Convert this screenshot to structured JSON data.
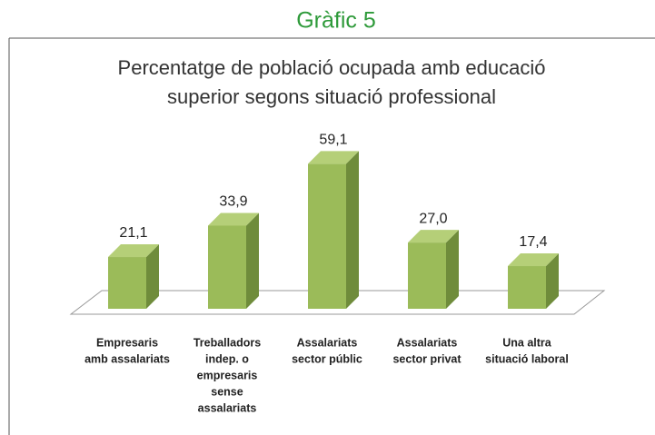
{
  "header": {
    "title": "Gràfic 5"
  },
  "chart_data": {
    "type": "bar",
    "title": [
      "Percentatge de població  ocupada amb educació",
      "superior  segons situació professional"
    ],
    "categories": [
      [
        "Empresaris",
        "amb assalariats"
      ],
      [
        "Treballadors",
        "indep. o",
        "empresaris",
        "sense",
        "assalariats"
      ],
      [
        "Assalariats",
        "sector públic"
      ],
      [
        "Assalariats",
        "sector privat"
      ],
      [
        "Una altra",
        "situació laboral"
      ]
    ],
    "values": [
      21.1,
      33.9,
      59.1,
      27.0,
      17.4
    ],
    "value_labels": [
      "21,1",
      "33,9",
      "59,1",
      "27,0",
      "17,4"
    ],
    "color": "#9bbb59"
  }
}
